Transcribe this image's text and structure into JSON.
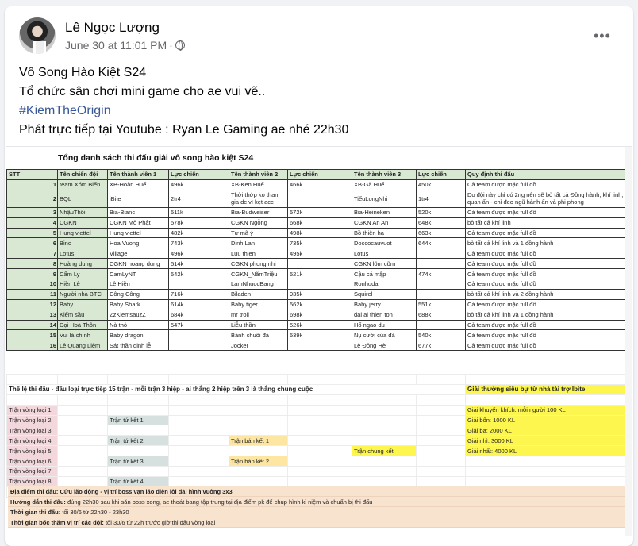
{
  "post": {
    "author": "Lê Ngọc Lượng",
    "time": "June 30 at 11:01 PM",
    "dot": "·",
    "more": "•••",
    "lines": [
      "Vô Song Hào Kiệt S24",
      "Tổ chức sân chơi mini game cho ae vui vẽ..",
      "#KiemTheOrigin",
      "Phát trực tiếp tại Youtube : Ryan Le Gaming ae nhé 22h30"
    ]
  },
  "sheet": {
    "title": "Tổng danh sách thi đấu giải vô song hào kiệt S24",
    "headers": [
      "STT",
      "Tên chiến đội",
      "Tên thành viên 1",
      "Lực chiến",
      "Tên thành viên 2",
      "Lực chiến",
      "Tên thành viên 3",
      "Lực chiến",
      "Quy định thi đấu"
    ],
    "rows": [
      [
        "1",
        "team Xóm Biển",
        "XB-Hoàn Huế",
        "496k",
        "XB-Ken Huế",
        "466k",
        "XB-Gà Huế",
        "450k",
        "Cả team được mặc full đồ"
      ],
      [
        "2",
        "BQL",
        "iBite",
        "2tr4",
        "Thời thớp ko tham gia dc vì kẹt acc",
        "",
        "TiểuLongNhi",
        "1tr4",
        "Do đội này chỉ có 2ng nên sẽ bỏ tất cả Đồng hành, khí linh, quan ấn - chỉ đeo ngũ hành ấn và phi phong"
      ],
      [
        "3",
        "NhậuThôi",
        "Bia-Bianc",
        "511k",
        "Bia-Budweiser",
        "572k",
        "Bia-Heineken",
        "520k",
        "Cả team được mặc full đồ"
      ],
      [
        "4",
        "CGKN",
        "CGKN Mỏ Phật",
        "578k",
        "CGKN Ngỗng",
        "668k",
        "CGKN An An",
        "648k",
        "bỏ tất cả khí linh"
      ],
      [
        "5",
        "Hung viettel",
        "Hung viettel",
        "482k",
        "Tư mã ý",
        "498k",
        "Bồ thiên hạ",
        "663k",
        "Cả team được mặc full đồ"
      ],
      [
        "6",
        "Bino",
        "Hoa Vuong",
        "743k",
        "Dinh Lan",
        "735k",
        "Doccocauvuot",
        "644k",
        "bỏ tất cả khí linh và 1 đồng hành"
      ],
      [
        "7",
        "Lotus",
        "Village",
        "496k",
        "Luu thien",
        "495k",
        "Lotus",
        "",
        "Cả team được mặc full đồ"
      ],
      [
        "8",
        "Hoàng dung",
        "CGKN hoang dung",
        "514k",
        "CGKN phong nhi",
        "",
        "CGKN lõm cõm",
        "",
        "Cả team được mặc full đồ"
      ],
      [
        "9",
        "Cẩm Ly",
        "CamLyNT",
        "542k",
        "CGKN_NămTriệu",
        "521k",
        "Cậu cá mập",
        "474k",
        "Cả team được mặc full đồ"
      ],
      [
        "10",
        "Hiền Lê",
        "Lê Hiền",
        "",
        "LamNhuocBang",
        "",
        "Ronhuda",
        "",
        "Cả team được mặc full đồ"
      ],
      [
        "11",
        "Người nhà BTC",
        "Công Công",
        "716k",
        "Biladen",
        "935k",
        "Squirel",
        "",
        "bỏ tất cả khí linh và 2 đồng hành"
      ],
      [
        "12",
        "Baby",
        "Baby Shark",
        "614k",
        "Baby tiger",
        "562k",
        "Baby jerry",
        "551k",
        "Cả team được mặc full đồ"
      ],
      [
        "13",
        "Kiếm sầu",
        "ZzKiemsauzZ",
        "684k",
        "mr troll",
        "698k",
        "dai ai thien ton",
        "688k",
        "bỏ tất cả khí linh và 1 đồng hành"
      ],
      [
        "14",
        "Đại Hoà Thôn",
        "Nà thỏ",
        "547k",
        "Liễu thần",
        "526k",
        "Hổ ngao du",
        "",
        "Cả team được mặc full đồ"
      ],
      [
        "15",
        "Vui là chính",
        "Baby dragon",
        "",
        "Bánh chuối đá",
        "539k",
        "Nụ cười của đá",
        "540k",
        "Cả team được mặc full đồ"
      ],
      [
        "16",
        "Lê Quang Liêm",
        "Sát thần đinh lễ",
        "",
        "Jocker",
        "",
        "Lê Đông Hè",
        "677k",
        "Cả team được mặc full đồ"
      ]
    ],
    "rule": "Thể lệ thi đấu - đấu loại trực tiếp 15 trận - mỗi trận 3 hiệp - ai thắng 2 hiệp trên 3 là thắng chung cuộc",
    "prize_title": "Giải thưởng siêu bự từ nhà tài trợ Ibite",
    "qualifiers": [
      "Trận vòng loại 1",
      "Trận vòng loại 2",
      "Trận vòng loại 3",
      "Trận vòng loại 4",
      "Trận vòng loại 5",
      "Trận vòng loại 6",
      "Trận vòng loại 7",
      "Trận vòng loại 8"
    ],
    "quarterfinals": [
      "Trận tứ kết 1",
      "Trận tứ kết 2",
      "Trận tứ kết 3",
      "Trận tứ kết 4"
    ],
    "semifinals": [
      "Trận bán kết 1",
      "Trận bán kết 2"
    ],
    "final": "Trận chung kết",
    "prizes": [
      "Giải khuyến khích: mỗi người 100 KL",
      "Giải bốn: 1000 KL",
      "Giải ba: 2000 KL",
      "Giải nhì: 3000 KL",
      "Giải nhất: 4000 KL"
    ],
    "info": [
      {
        "label": "Địa điểm thi đấu: Cửu lão động - vị trí boss vạn lão điên lôi đài hình vuông 3x3",
        "text": ""
      },
      {
        "label": "Hướng dẫn thi đấu:",
        "text": " đúng 22h30 sau khi săn boss xong, ae thoát bang tập trung tại địa điểm pk để chụp hình kỉ niệm và chuẩn bị thi đấu"
      },
      {
        "label": "Thời gian thi đấu:",
        "text": " tối 30/6 từ 22h30 - 23h30"
      },
      {
        "label": "Thời gian bốc thăm vị trí các đội:",
        "text": " tối 30/6 từ 22h trước giờ thi đấu vòng loại"
      }
    ],
    "colors": {
      "header": "#d9e8d3",
      "qualifier": "#f2d7dc",
      "quarterfinal": "#d6e0de",
      "semifinal": "#fde6a2",
      "prize": "#fdf64f",
      "info": "#f8e3cf"
    }
  }
}
